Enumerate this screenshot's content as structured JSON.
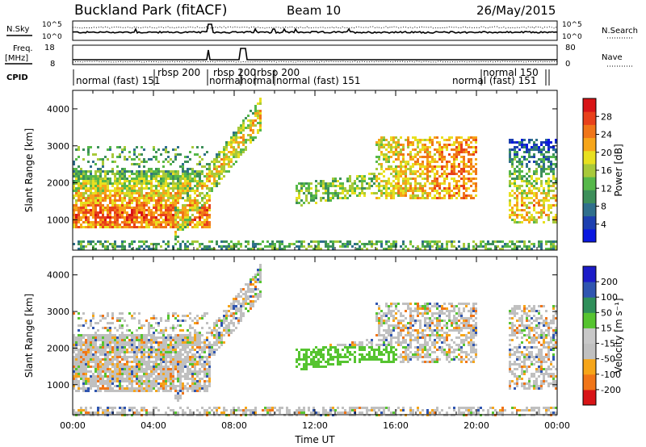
{
  "header": {
    "site": "Buckland Park (fitACF)",
    "beam": "Beam 10",
    "date": "26/May/2015"
  },
  "top_panels": {
    "nsky_label": "N.Sky",
    "nsky_ticks": [
      "10^5",
      "10^0"
    ],
    "nsearch_label": "N.Search",
    "nsearch_ticks": [
      "10^5",
      "10^0"
    ],
    "freq_label_1": "Freq.",
    "freq_label_2": "[MHz]",
    "freq_ticks": [
      "18",
      "8"
    ],
    "nave_label": "Nave",
    "nave_ticks": [
      "80",
      "0"
    ],
    "cpid_label": "CPID",
    "cpid_segments": [
      {
        "text": "normal (fast)  151"
      },
      {
        "text": "rbsp 200"
      },
      {
        "text": "normal"
      },
      {
        "text": "rbsp 200"
      },
      {
        "text": "normal"
      },
      {
        "text": "rbsp 200"
      },
      {
        "text": "normal (fast)  151"
      },
      {
        "text": "normal 150"
      },
      {
        "text": "normal (fast)  151"
      }
    ]
  },
  "colors": {
    "power": [
      "#0a18e0",
      "#1c3fb0",
      "#2f6f8c",
      "#3d8f5a",
      "#56b84a",
      "#a8c93a",
      "#e8e020",
      "#f6a519",
      "#f07518",
      "#e8401a",
      "#d81416"
    ],
    "velocity": [
      "#d81416",
      "#f07518",
      "#f6a519",
      "#c0c0c0",
      "#c8c8c8",
      "#56c430",
      "#2f8f5a",
      "#2f55b0",
      "#1c1cc8"
    ]
  },
  "chart_data": [
    {
      "type": "heatmap",
      "name": "power",
      "xlabel": "",
      "ylabel": "Slant Range [km]",
      "xlim": [
        0,
        24
      ],
      "ylim": [
        180,
        4500
      ],
      "yticks": [
        1000,
        2000,
        3000,
        4000
      ],
      "colorbar_label": "Power [dB]",
      "colorbar_ticks": [
        "4",
        "8",
        "12",
        "16",
        "20",
        "24",
        "28"
      ],
      "colorbar_range": [
        0,
        30
      ]
    },
    {
      "type": "heatmap",
      "name": "velocity",
      "xlabel": "Time UT",
      "ylabel": "Slant Range [km]",
      "xlim": [
        0,
        24
      ],
      "ylim": [
        180,
        4500
      ],
      "xticks": [
        "00:00",
        "04:00",
        "08:00",
        "12:00",
        "16:00",
        "20:00",
        "00:00"
      ],
      "yticks": [
        1000,
        2000,
        3000,
        4000
      ],
      "colorbar_label": "Velocity [m s⁻¹]",
      "colorbar_ticks": [
        "-200",
        "-100",
        "-50",
        "-15",
        "15",
        "50",
        "100",
        "200"
      ],
      "colorbar_range": [
        -250,
        250
      ]
    }
  ]
}
